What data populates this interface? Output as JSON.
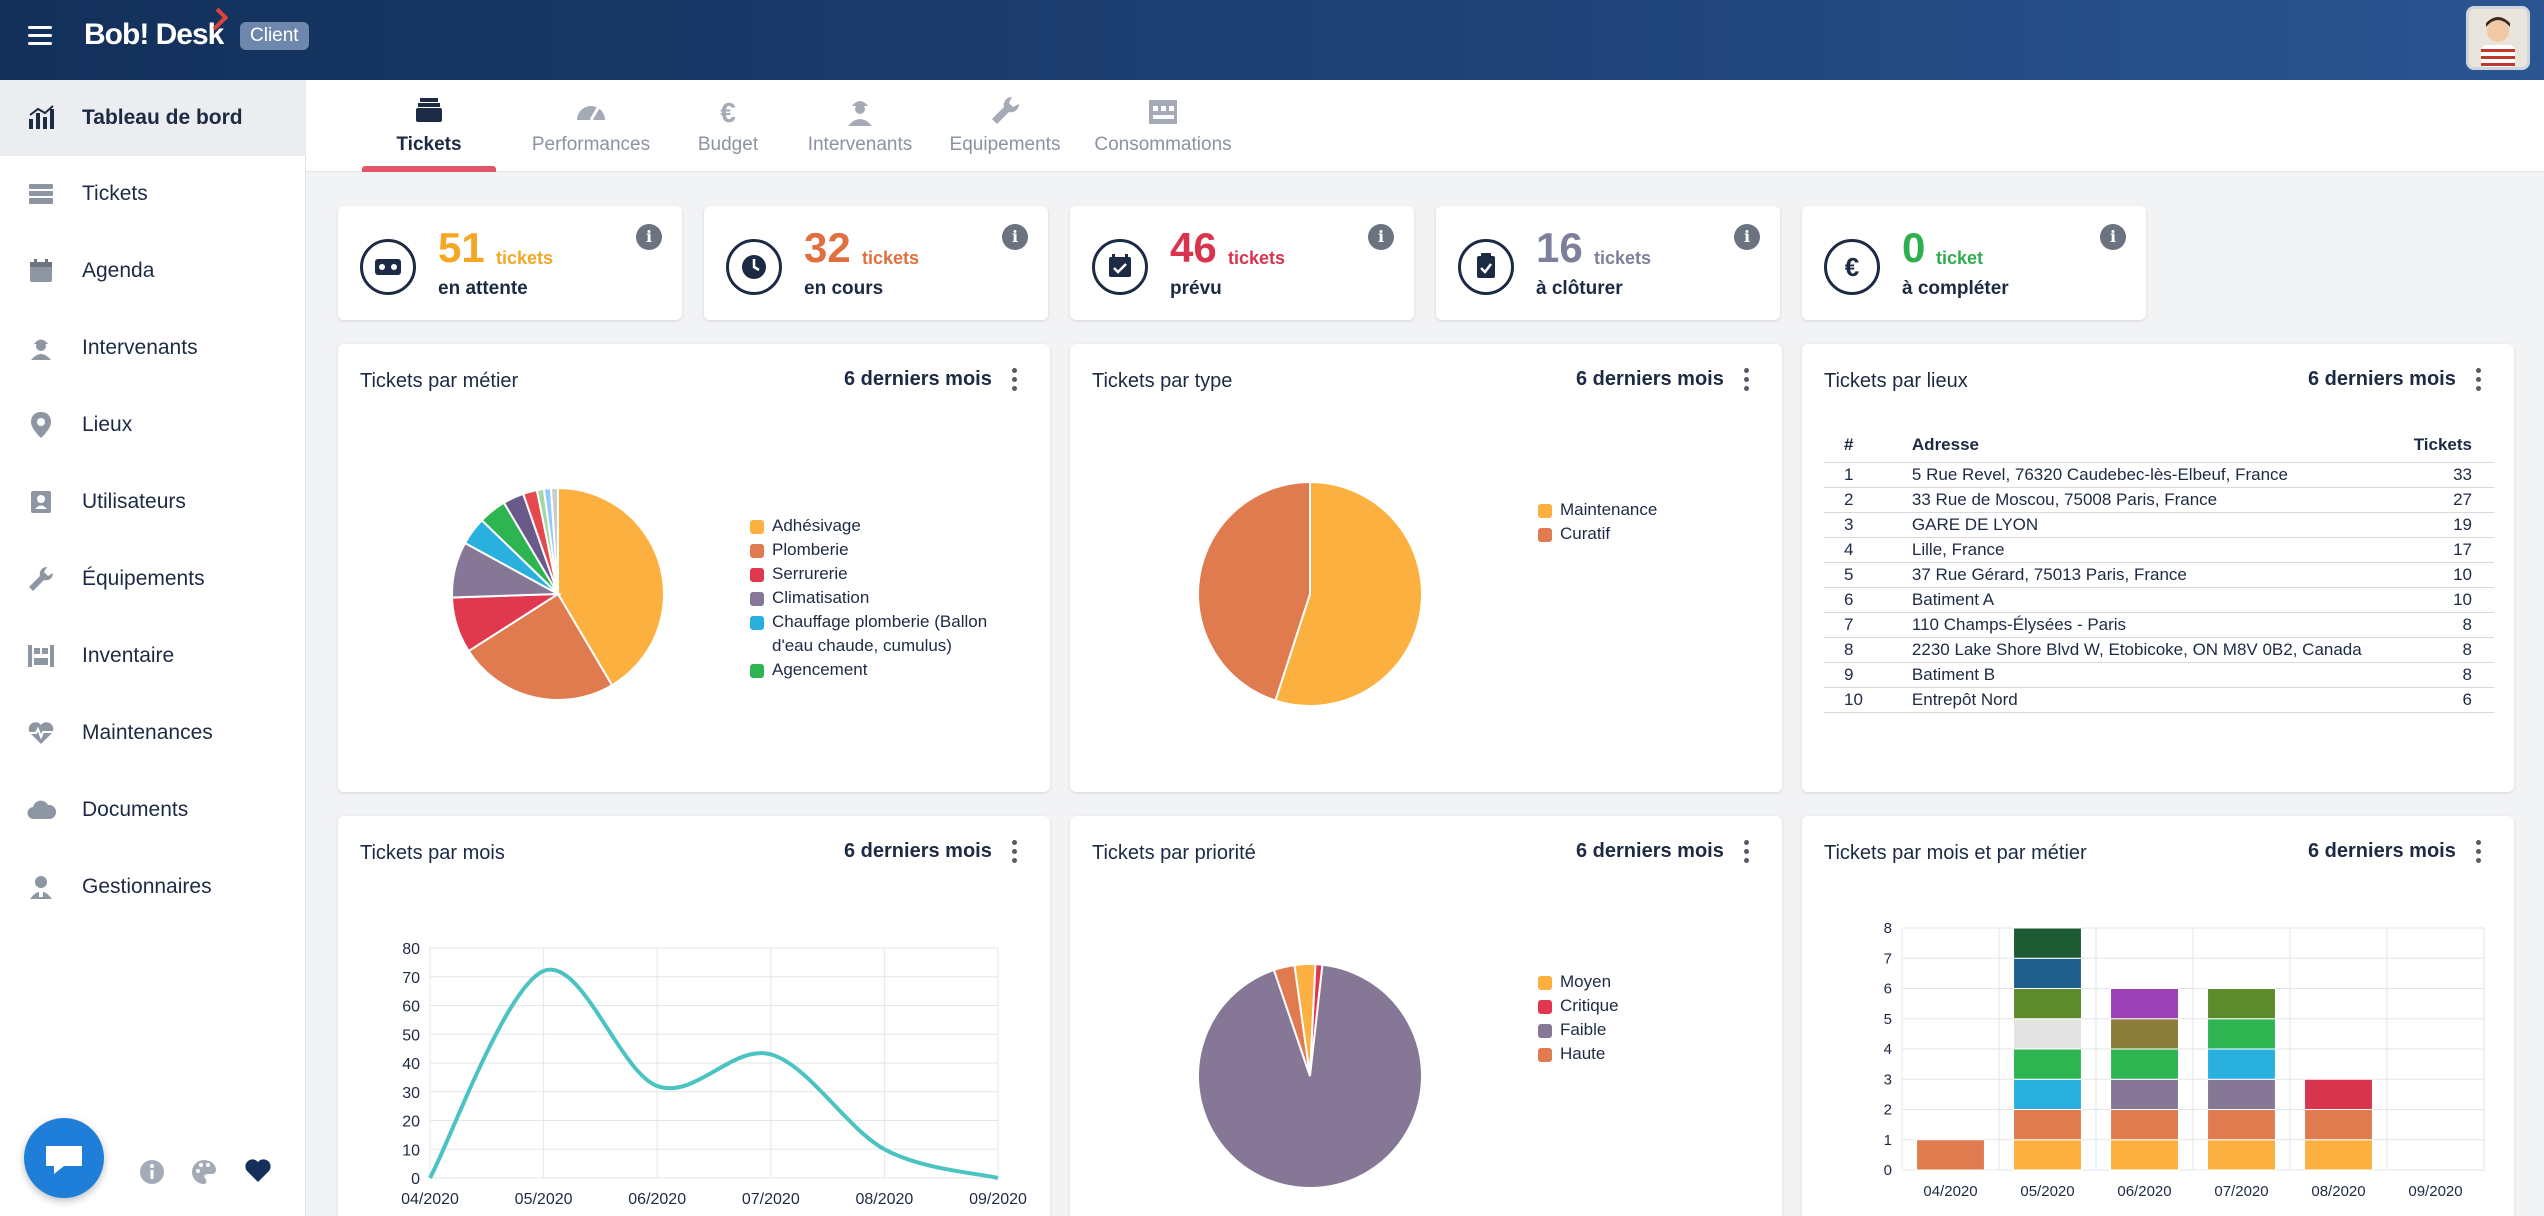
{
  "app": {
    "name": "Bob! Desk",
    "badge": "Client"
  },
  "sidebar": {
    "items": [
      {
        "label": "Tableau de bord",
        "icon": "bar-chart-icon",
        "active": true
      },
      {
        "label": "Tickets",
        "icon": "ticket-stack-icon"
      },
      {
        "label": "Agenda",
        "icon": "calendar-icon"
      },
      {
        "label": "Intervenants",
        "icon": "worker-icon"
      },
      {
        "label": "Lieux",
        "icon": "location-pin-icon"
      },
      {
        "label": "Utilisateurs",
        "icon": "user-card-icon"
      },
      {
        "label": "Équipements",
        "icon": "wrench-icon"
      },
      {
        "label": "Inventaire",
        "icon": "inventory-icon"
      },
      {
        "label": "Maintenances",
        "icon": "heart-pulse-icon"
      },
      {
        "label": "Documents",
        "icon": "cloud-icon"
      },
      {
        "label": "Gestionnaires",
        "icon": "manager-icon"
      }
    ]
  },
  "tabs": [
    {
      "label": "Tickets",
      "icon": "inbox-tray-icon",
      "active": true
    },
    {
      "label": "Performances",
      "icon": "gauge-icon"
    },
    {
      "label": "Budget",
      "icon": "euro-icon"
    },
    {
      "label": "Intervenants",
      "icon": "worker-icon"
    },
    {
      "label": "Equipements",
      "icon": "wrench-icon"
    },
    {
      "label": "Consommations",
      "icon": "factory-icon"
    }
  ],
  "kpis": [
    {
      "value": "51",
      "unit": "tickets",
      "label": "en attente",
      "color": "#f5a623",
      "icon": "cassette-icon"
    },
    {
      "value": "32",
      "unit": "tickets",
      "label": "en cours",
      "color": "#e07040",
      "icon": "clock-icon"
    },
    {
      "value": "46",
      "unit": "tickets",
      "label": "prévu",
      "color": "#d8344e",
      "icon": "calendar-check-icon"
    },
    {
      "value": "16",
      "unit": "tickets",
      "label": "à clôturer",
      "color": "#7e7f9a",
      "icon": "clipboard-icon"
    },
    {
      "value": "0",
      "unit": "ticket",
      "label": "à compléter",
      "color": "#2eae4e",
      "icon": "euro-icon"
    }
  ],
  "info_glyph": "i",
  "panels": {
    "metier": {
      "title": "Tickets par métier",
      "period": "6 derniers mois"
    },
    "type": {
      "title": "Tickets par type",
      "period": "6 derniers mois"
    },
    "lieux": {
      "title": "Tickets par lieux",
      "period": "6 derniers mois"
    },
    "mois": {
      "title": "Tickets par mois",
      "period": "6 derniers mois"
    },
    "priorite": {
      "title": "Tickets par priorité",
      "period": "6 derniers mois"
    },
    "mois_metier": {
      "title": "Tickets par mois et par métier",
      "period": "6 derniers mois"
    }
  },
  "lieux_table": {
    "headers": [
      "#",
      "Adresse",
      "Tickets"
    ],
    "rows": [
      [
        "1",
        "5 Rue Revel, 76320 Caudebec-lès-Elbeuf, France",
        "33"
      ],
      [
        "2",
        "33 Rue de Moscou, 75008 Paris, France",
        "27"
      ],
      [
        "3",
        "GARE DE LYON",
        "19"
      ],
      [
        "4",
        "Lille, France",
        "17"
      ],
      [
        "5",
        "37 Rue Gérard, 75013 Paris, France",
        "10"
      ],
      [
        "6",
        "Batiment A",
        "10"
      ],
      [
        "7",
        "110 Champs-Élysées - Paris",
        "8"
      ],
      [
        "8",
        "2230 Lake Shore Blvd W, Etobicoke, ON M8V 0B2, Canada",
        "8"
      ],
      [
        "9",
        "Batiment B",
        "8"
      ],
      [
        "10",
        "Entrepôt Nord",
        "6"
      ]
    ]
  },
  "chart_data": [
    {
      "type": "pie",
      "chart": "metier",
      "labels": [
        "Adhésivage",
        "Plomberie",
        "Serrurerie",
        "Climatisation",
        "Chauffage plomberie (Ballon d'eau chaude, cumulus)",
        "Agencement",
        "",
        "",
        "",
        "",
        ""
      ],
      "values": [
        39,
        23,
        8,
        8,
        4,
        4,
        3,
        2,
        1,
        1,
        1
      ],
      "colors": [
        "#fbb040",
        "#e07a4f",
        "#e0394f",
        "#857795",
        "#2ab0df",
        "#2eb552",
        "#6a5a8a",
        "#e5484d",
        "#a5d6a7",
        "#90caf9",
        "#cccccc"
      ],
      "legend": "right"
    },
    {
      "type": "pie",
      "chart": "type",
      "labels": [
        "Maintenance",
        "Curatif"
      ],
      "values": [
        55,
        45
      ],
      "colors": [
        "#fbb040",
        "#e07a4f"
      ],
      "legend": "right"
    },
    {
      "type": "line",
      "chart": "mois",
      "x": [
        "04/2020",
        "05/2020",
        "06/2020",
        "07/2020",
        "08/2020",
        "09/2020"
      ],
      "y": [
        0,
        72,
        32,
        43,
        10,
        0
      ],
      "ylim": [
        0,
        80
      ],
      "yticks": [
        0,
        10,
        20,
        30,
        40,
        50,
        60,
        70,
        80
      ],
      "color": "#4cc3c3",
      "grid": true
    },
    {
      "type": "pie",
      "chart": "priorite",
      "labels": [
        "Moyen",
        "Critique",
        "Faible",
        "Haute"
      ],
      "values": [
        3,
        1,
        93,
        3
      ],
      "colors": [
        "#fbb040",
        "#e0394f",
        "#857795",
        "#e07a4f"
      ],
      "legend": "right"
    },
    {
      "type": "bar",
      "chart": "mois_metier",
      "stacked": true,
      "categories": [
        "04/2020",
        "05/2020",
        "06/2020",
        "07/2020",
        "08/2020",
        "09/2020"
      ],
      "ylim": [
        0,
        8
      ],
      "yticks": [
        0,
        1,
        2,
        3,
        4,
        5,
        6,
        7,
        8
      ],
      "grid": true,
      "series": [
        {
          "color": "#fbb040",
          "values": [
            0,
            1,
            1,
            1,
            1,
            0
          ]
        },
        {
          "color": "#e07a4f",
          "values": [
            1,
            1,
            1,
            1,
            1,
            0
          ]
        },
        {
          "color": "#857795",
          "values": [
            0,
            0,
            1,
            1,
            0,
            0
          ]
        },
        {
          "color": "#2ab0df",
          "values": [
            0,
            1,
            0,
            1,
            0,
            0
          ]
        },
        {
          "color": "#2eb552",
          "values": [
            0,
            1,
            1,
            1,
            0,
            0
          ]
        },
        {
          "color": "#e3e3e3",
          "values": [
            0,
            1,
            0,
            0,
            0,
            0
          ]
        },
        {
          "color": "#d8344e",
          "values": [
            0,
            0,
            0,
            0,
            1,
            0
          ]
        },
        {
          "color": "#5d8a2b",
          "values": [
            0,
            1,
            0,
            1,
            0,
            0
          ]
        },
        {
          "color": "#8a7d3a",
          "values": [
            0,
            0,
            1,
            0,
            0,
            0
          ]
        },
        {
          "color": "#9b40b5",
          "values": [
            0,
            0,
            1,
            0,
            0,
            0
          ]
        },
        {
          "color": "#1f5f8b",
          "values": [
            0,
            1,
            0,
            0,
            0,
            0
          ]
        },
        {
          "color": "#1e5b34",
          "values": [
            0,
            1,
            0,
            0,
            0,
            0
          ]
        }
      ]
    }
  ]
}
